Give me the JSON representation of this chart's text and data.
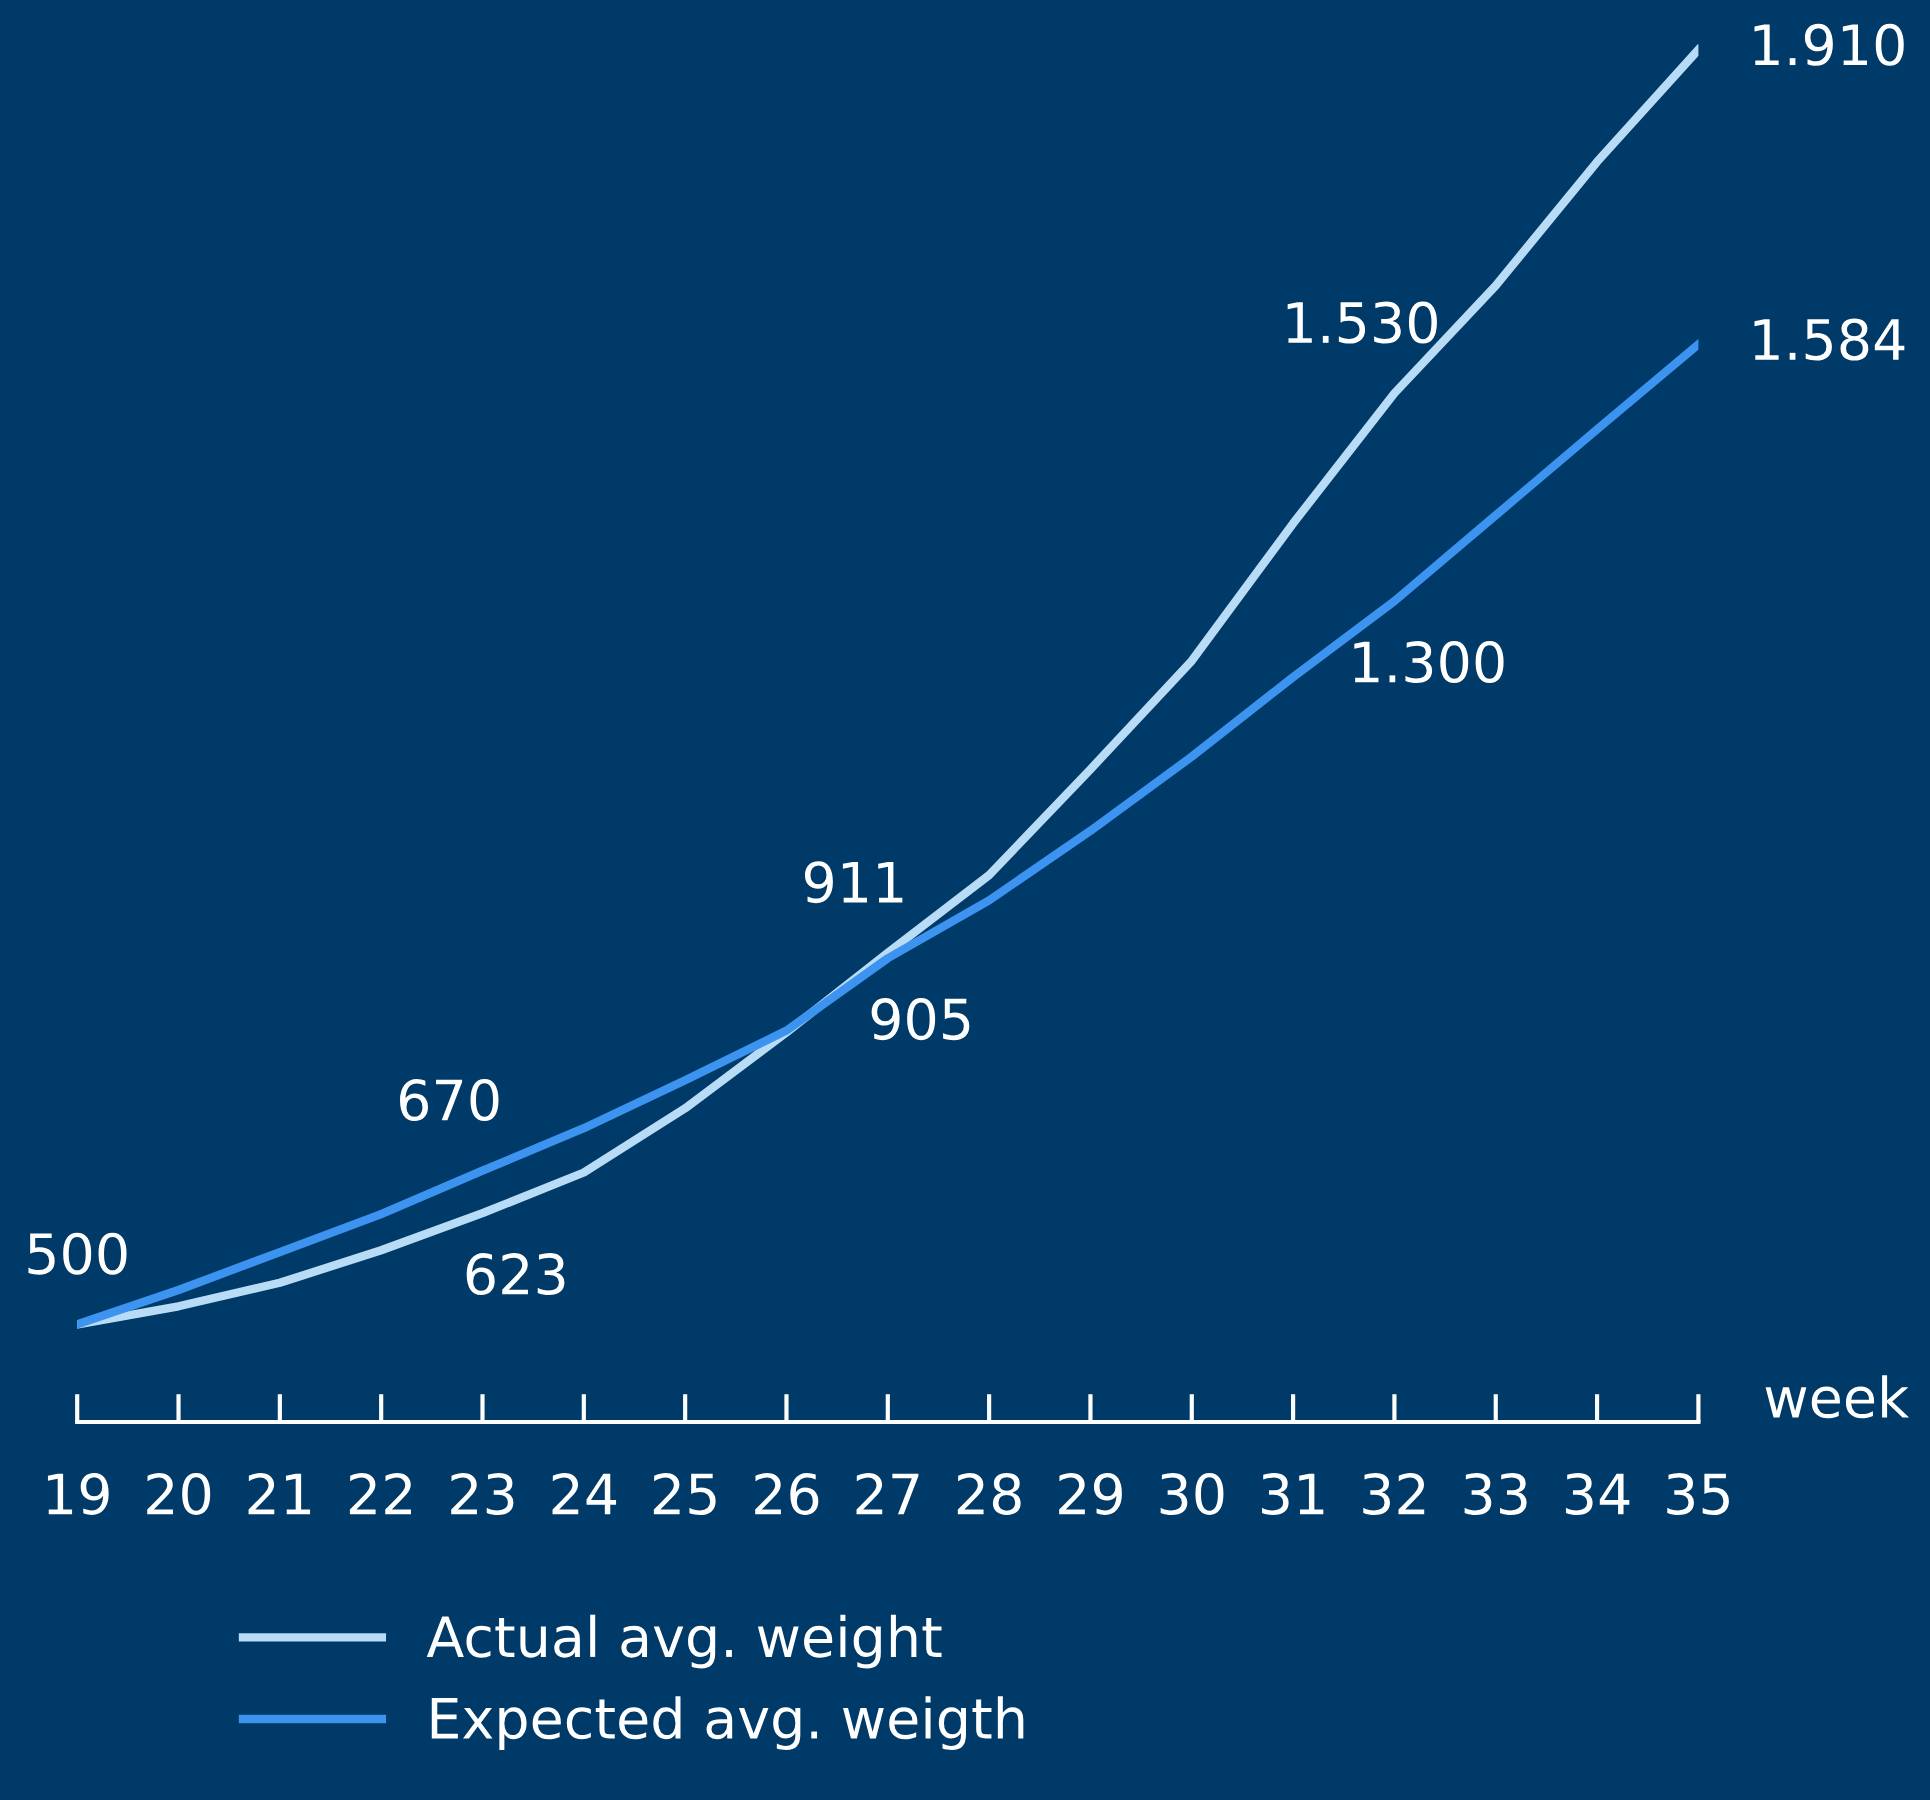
{
  "chart_data": {
    "type": "line",
    "xlabel": "week",
    "categories": [
      "19",
      "20",
      "21",
      "22",
      "23",
      "24",
      "25",
      "26",
      "27",
      "28",
      "29",
      "30",
      "31",
      "32",
      "33",
      "34",
      "35"
    ],
    "ylim": [
      392,
      1965
    ],
    "legend": "bottom",
    "marker": "none",
    "line_style": "solid",
    "grid": false,
    "tick_labels": "x",
    "series": [
      {
        "name": "Actual avg. weight",
        "color": "#b8dcf6",
        "values": [
          500,
          520,
          546,
          582,
          623,
          668,
          739,
          823,
          911,
          997,
          1114,
          1234,
          1386,
          1530,
          1649,
          1786,
          1910
        ],
        "value_labels": [
          "500",
          null,
          null,
          null,
          "623",
          null,
          null,
          null,
          "911",
          null,
          null,
          null,
          null,
          "1.530",
          null,
          null,
          "1.910"
        ]
      },
      {
        "name": "Expected avg. weigth",
        "color": "#3d94f0",
        "values": [
          500,
          538,
          580,
          622,
          670,
          717,
          770,
          825,
          905,
          969,
          1046,
          1128,
          1216,
          1300,
          1395,
          1490,
          1584
        ],
        "value_labels": [
          null,
          null,
          null,
          null,
          "670",
          null,
          null,
          null,
          "905",
          null,
          null,
          null,
          null,
          "1.300",
          null,
          null,
          "1.584"
        ]
      }
    ]
  }
}
